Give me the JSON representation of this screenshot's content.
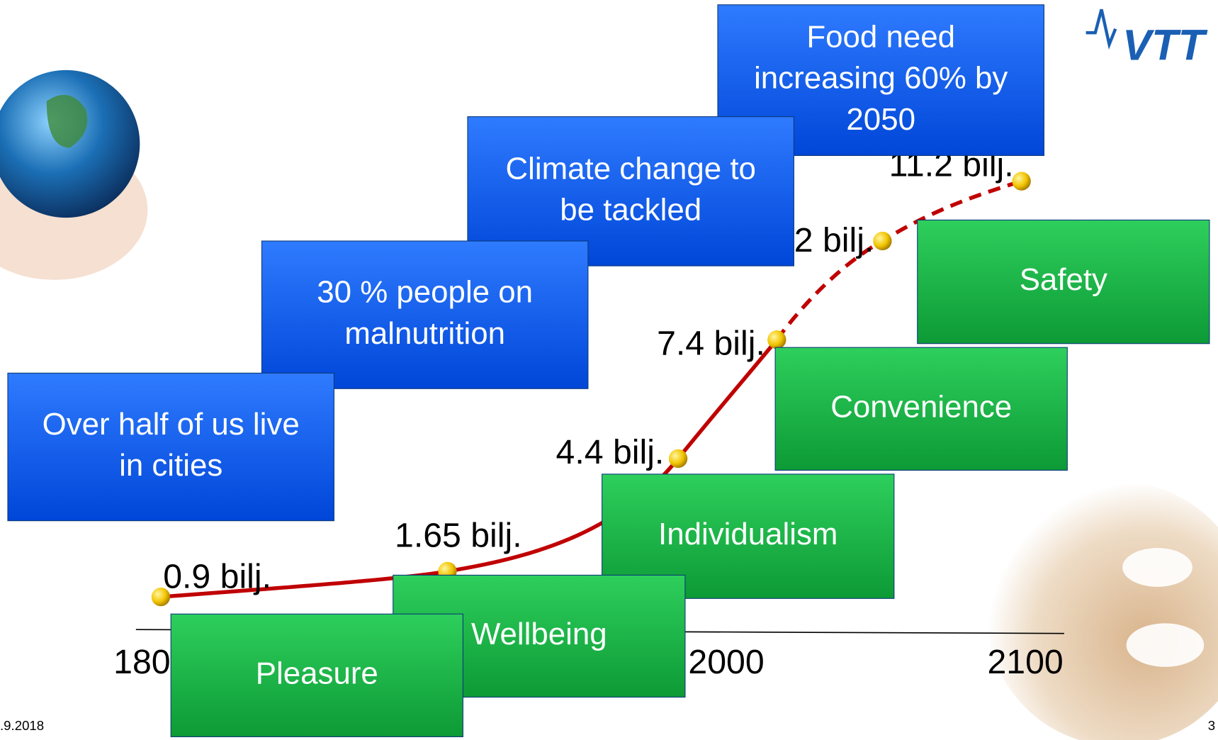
{
  "logo": "VTT",
  "axis_labels": [
    "1800",
    "2000",
    "2100"
  ],
  "population_points": [
    {
      "label": "0.9 bilj."
    },
    {
      "label": "1.65 bilj."
    },
    {
      "label": "4.4 bilj."
    },
    {
      "label": "7.4 bilj."
    },
    {
      "label": "9.2 bilj."
    },
    {
      "label": "11.2 bilj."
    }
  ],
  "challenges": [
    {
      "lines": [
        "Over half of us live",
        "in cities"
      ]
    },
    {
      "lines": [
        "30 % people on",
        "malnutrition"
      ]
    },
    {
      "lines": [
        "Climate change to",
        "be tackled"
      ]
    },
    {
      "lines": [
        "Food need",
        "increasing 60% by",
        "2050"
      ]
    }
  ],
  "drivers": [
    {
      "lines": [
        "Pleasure"
      ]
    },
    {
      "lines": [
        "Wellbeing"
      ]
    },
    {
      "lines": [
        "Individualism"
      ]
    },
    {
      "lines": [
        "Convenience"
      ]
    },
    {
      "lines": [
        "Safety"
      ]
    }
  ],
  "footer": {
    "date": ".9.2018",
    "page": "3"
  }
}
